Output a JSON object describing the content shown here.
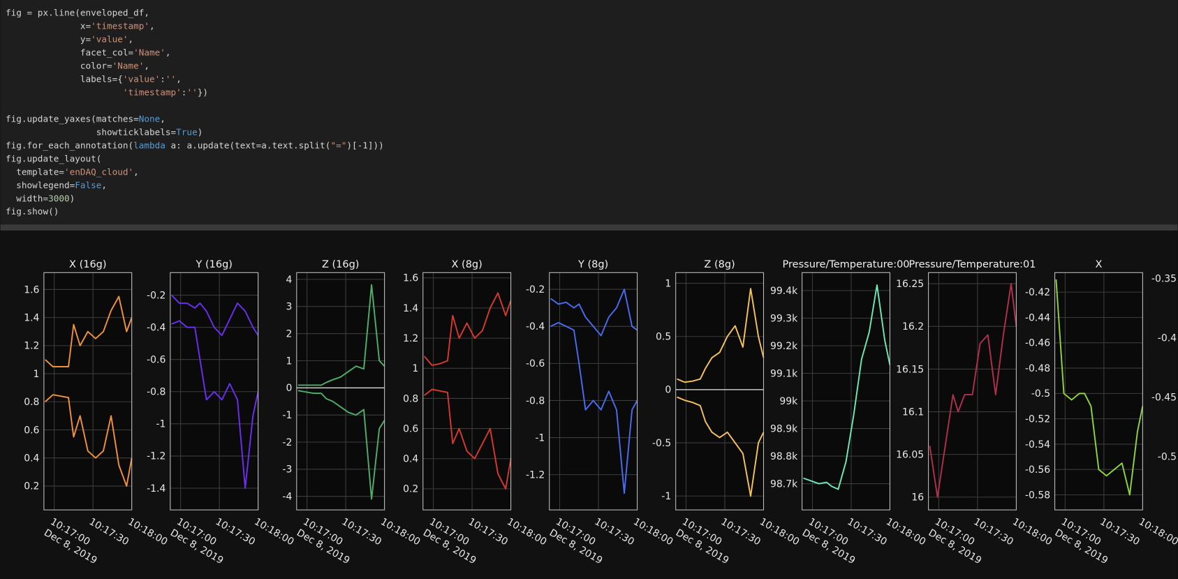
{
  "code": {
    "lines": [
      {
        "segments": [
          {
            "text": "fig = px.line(enveloped_df,",
            "color": "#d4d4d4"
          }
        ]
      },
      {
        "segments": [
          {
            "text": "              x=",
            "color": "#d4d4d4"
          },
          {
            "text": "'timestamp'",
            "color": "#ce9178"
          },
          {
            "text": ",",
            "color": "#d4d4d4"
          }
        ]
      },
      {
        "segments": [
          {
            "text": "              y=",
            "color": "#d4d4d4"
          },
          {
            "text": "'value'",
            "color": "#ce9178"
          },
          {
            "text": ",",
            "color": "#d4d4d4"
          }
        ]
      },
      {
        "segments": [
          {
            "text": "              facet_col=",
            "color": "#d4d4d4"
          },
          {
            "text": "'Name'",
            "color": "#ce9178"
          },
          {
            "text": ",",
            "color": "#d4d4d4"
          }
        ]
      },
      {
        "segments": [
          {
            "text": "              color=",
            "color": "#d4d4d4"
          },
          {
            "text": "'Name'",
            "color": "#ce9178"
          },
          {
            "text": ",",
            "color": "#d4d4d4"
          }
        ]
      },
      {
        "segments": [
          {
            "text": "              labels={",
            "color": "#d4d4d4"
          },
          {
            "text": "'value'",
            "color": "#ce9178"
          },
          {
            "text": ":",
            "color": "#d4d4d4"
          },
          {
            "text": "''",
            "color": "#ce9178"
          },
          {
            "text": ",",
            "color": "#d4d4d4"
          }
        ]
      },
      {
        "segments": [
          {
            "text": "                      ",
            "color": "#d4d4d4"
          },
          {
            "text": "'timestamp'",
            "color": "#ce9178"
          },
          {
            "text": ":",
            "color": "#d4d4d4"
          },
          {
            "text": "''",
            "color": "#ce9178"
          },
          {
            "text": "})",
            "color": "#d4d4d4"
          }
        ]
      },
      {
        "segments": []
      },
      {
        "segments": [
          {
            "text": "fig.update_yaxes(matches=",
            "color": "#d4d4d4"
          },
          {
            "text": "None",
            "color": "#569cd6"
          },
          {
            "text": ",",
            "color": "#d4d4d4"
          }
        ]
      },
      {
        "segments": [
          {
            "text": "                 showticklabels=",
            "color": "#d4d4d4"
          },
          {
            "text": "True",
            "color": "#569cd6"
          },
          {
            "text": ")",
            "color": "#d4d4d4"
          }
        ]
      },
      {
        "segments": [
          {
            "text": "fig.for_each_annotation(",
            "color": "#d4d4d4"
          },
          {
            "text": "lambda",
            "color": "#569cd6"
          },
          {
            "text": " a: a.update(text=a.text.split(",
            "color": "#d4d4d4"
          },
          {
            "text": "\"=\"",
            "color": "#ce9178"
          },
          {
            "text": ")[-1]))",
            "color": "#d4d4d4"
          }
        ]
      },
      {
        "segments": [
          {
            "text": "fig.update_layout(",
            "color": "#d4d4d4"
          }
        ]
      },
      {
        "segments": [
          {
            "text": "  template=",
            "color": "#d4d4d4"
          },
          {
            "text": "'enDAQ_cloud'",
            "color": "#ce9178"
          },
          {
            "text": ",",
            "color": "#d4d4d4"
          }
        ]
      },
      {
        "segments": [
          {
            "text": "  showlegend=",
            "color": "#d4d4d4"
          },
          {
            "text": "False",
            "color": "#569cd6"
          },
          {
            "text": ",",
            "color": "#d4d4d4"
          }
        ]
      },
      {
        "segments": [
          {
            "text": "  width=",
            "color": "#d4d4d4"
          },
          {
            "text": "3000",
            "color": "#b5cea8"
          },
          {
            "text": ")",
            "color": "#d4d4d4"
          }
        ]
      },
      {
        "segments": [
          {
            "text": "fig.show()",
            "color": "#d4d4d4"
          }
        ]
      }
    ]
  },
  "chart_data": [
    {
      "type": "line",
      "title": "X (16g)",
      "x_date_label": "Dec 8, 2019",
      "x": [
        "10:16:53",
        "10:16:59",
        "10:17:05",
        "10:17:11",
        "10:17:15",
        "10:17:20",
        "10:17:26",
        "10:17:32",
        "10:17:38",
        "10:17:44",
        "10:17:50",
        "10:17:56",
        "10:18:00"
      ],
      "xlim": [
        "10:16:52",
        "10:18:00"
      ],
      "xticks": [
        "10:17:00",
        "10:17:30",
        "10:18:00"
      ],
      "ylim": [
        0.03,
        1.72
      ],
      "yticks": [
        0.2,
        0.4,
        0.6,
        0.8,
        1,
        1.2,
        1.4,
        1.6
      ],
      "grid": true,
      "series": [
        {
          "color": "#f0923a",
          "values": [
            1.1,
            1.05,
            1.05,
            1.05,
            1.35,
            1.2,
            1.3,
            1.25,
            1.3,
            1.45,
            1.55,
            1.3,
            1.4
          ]
        },
        {
          "color": "#f0923a",
          "values": [
            0.8,
            0.85,
            0.84,
            0.83,
            0.55,
            0.7,
            0.45,
            0.4,
            0.45,
            0.7,
            0.35,
            0.2,
            0.4
          ]
        }
      ]
    },
    {
      "type": "line",
      "title": "Y (16g)",
      "x_date_label": "Dec 8, 2019",
      "x": [
        "10:16:53",
        "10:16:59",
        "10:17:05",
        "10:17:11",
        "10:17:15",
        "10:17:20",
        "10:17:26",
        "10:17:32",
        "10:17:38",
        "10:17:44",
        "10:17:50",
        "10:17:56",
        "10:18:00"
      ],
      "xlim": [
        "10:16:52",
        "10:18:00"
      ],
      "xticks": [
        "10:17:00",
        "10:17:30",
        "10:18:00"
      ],
      "ylim": [
        -1.535,
        -0.06
      ],
      "yticks": [
        -1.4,
        -1.2,
        -1,
        -0.8,
        -0.6,
        -0.4,
        -0.2
      ],
      "grid": true,
      "series": [
        {
          "color": "#6a2ff0",
          "values": [
            -0.2,
            -0.25,
            -0.25,
            -0.28,
            -0.25,
            -0.3,
            -0.4,
            -0.45,
            -0.35,
            -0.25,
            -0.3,
            -0.4,
            -0.45
          ]
        },
        {
          "color": "#6a2ff0",
          "values": [
            -0.38,
            -0.36,
            -0.4,
            -0.4,
            -0.6,
            -0.85,
            -0.8,
            -0.85,
            -0.75,
            -0.85,
            -1.4,
            -0.95,
            -0.8
          ]
        }
      ]
    },
    {
      "type": "line",
      "title": "Z (16g)",
      "x_date_label": "Dec 8, 2019",
      "zeroline": true,
      "x": [
        "10:16:53",
        "10:16:59",
        "10:17:05",
        "10:17:11",
        "10:17:15",
        "10:17:20",
        "10:17:26",
        "10:17:32",
        "10:17:38",
        "10:17:44",
        "10:17:50",
        "10:17:56",
        "10:18:00"
      ],
      "xlim": [
        "10:16:52",
        "10:18:00"
      ],
      "xticks": [
        "10:17:00",
        "10:17:30",
        "10:18:00"
      ],
      "ylim": [
        -4.5,
        4.25
      ],
      "yticks": [
        -4,
        -3,
        -2,
        -1,
        0,
        1,
        2,
        3,
        4
      ],
      "grid": true,
      "series": [
        {
          "color": "#4fae6a",
          "values": [
            0.1,
            0.1,
            0.1,
            0.1,
            0.2,
            0.3,
            0.4,
            0.6,
            0.8,
            0.7,
            3.8,
            1.0,
            0.8
          ]
        },
        {
          "color": "#4fae6a",
          "values": [
            -0.1,
            -0.15,
            -0.2,
            -0.2,
            -0.4,
            -0.5,
            -0.7,
            -0.9,
            -1.0,
            -0.8,
            -4.1,
            -1.5,
            -1.2
          ]
        }
      ]
    },
    {
      "type": "line",
      "title": "X (8g)",
      "x_date_label": "Dec 8, 2019",
      "x": [
        "10:16:53",
        "10:16:59",
        "10:17:05",
        "10:17:11",
        "10:17:15",
        "10:17:20",
        "10:17:26",
        "10:17:32",
        "10:17:38",
        "10:17:44",
        "10:17:50",
        "10:17:56",
        "10:18:00"
      ],
      "xlim": [
        "10:16:52",
        "10:18:00"
      ],
      "xticks": [
        "10:17:00",
        "10:17:30",
        "10:18:00"
      ],
      "ylim": [
        0.06,
        1.635
      ],
      "yticks": [
        0.2,
        0.4,
        0.6,
        0.8,
        1,
        1.2,
        1.4,
        1.6
      ],
      "grid": true,
      "series": [
        {
          "color": "#d63a2e",
          "values": [
            1.08,
            1.02,
            1.03,
            1.05,
            1.35,
            1.2,
            1.3,
            1.2,
            1.25,
            1.4,
            1.5,
            1.35,
            1.45
          ]
        },
        {
          "color": "#d63a2e",
          "values": [
            0.82,
            0.86,
            0.85,
            0.84,
            0.5,
            0.6,
            0.45,
            0.4,
            0.5,
            0.6,
            0.3,
            0.2,
            0.4
          ]
        }
      ]
    },
    {
      "type": "line",
      "title": "Y (8g)",
      "x_date_label": "Dec 8, 2019",
      "x": [
        "10:16:53",
        "10:16:59",
        "10:17:05",
        "10:17:11",
        "10:17:15",
        "10:17:20",
        "10:17:26",
        "10:17:32",
        "10:17:38",
        "10:17:44",
        "10:17:50",
        "10:17:56",
        "10:18:00"
      ],
      "xlim": [
        "10:16:52",
        "10:18:00"
      ],
      "xticks": [
        "10:17:00",
        "10:17:30",
        "10:18:00"
      ],
      "ylim": [
        -1.39,
        -0.11
      ],
      "yticks": [
        -1.2,
        -1,
        -0.8,
        -0.6,
        -0.4,
        -0.2
      ],
      "grid": true,
      "series": [
        {
          "color": "#4a6cf0",
          "values": [
            -0.25,
            -0.28,
            -0.27,
            -0.3,
            -0.28,
            -0.35,
            -0.4,
            -0.45,
            -0.35,
            -0.3,
            -0.2,
            -0.4,
            -0.42
          ]
        },
        {
          "color": "#4a6cf0",
          "values": [
            -0.4,
            -0.38,
            -0.4,
            -0.42,
            -0.6,
            -0.85,
            -0.8,
            -0.85,
            -0.75,
            -0.85,
            -1.3,
            -0.85,
            -0.8
          ]
        }
      ]
    },
    {
      "type": "line",
      "title": "Z (8g)",
      "x_date_label": "Dec 8, 2019",
      "zeroline": true,
      "x": [
        "10:16:53",
        "10:16:59",
        "10:17:05",
        "10:17:11",
        "10:17:15",
        "10:17:20",
        "10:17:26",
        "10:17:32",
        "10:17:38",
        "10:17:44",
        "10:17:50",
        "10:17:56",
        "10:18:00"
      ],
      "xlim": [
        "10:16:52",
        "10:18:00"
      ],
      "xticks": [
        "10:17:00",
        "10:17:30",
        "10:18:00"
      ],
      "ylim": [
        -1.13,
        1.1
      ],
      "yticks": [
        -1,
        -0.5,
        0,
        0.5,
        1
      ],
      "grid": true,
      "series": [
        {
          "color": "#f5c35a",
          "values": [
            0.1,
            0.07,
            0.08,
            0.1,
            0.2,
            0.3,
            0.35,
            0.5,
            0.6,
            0.4,
            0.95,
            0.5,
            0.3
          ]
        },
        {
          "color": "#f5c35a",
          "values": [
            -0.07,
            -0.1,
            -0.12,
            -0.15,
            -0.3,
            -0.4,
            -0.45,
            -0.4,
            -0.5,
            -0.6,
            -1.0,
            -0.5,
            -0.4
          ]
        }
      ]
    },
    {
      "type": "line",
      "title": "Pressure/Temperature:00",
      "x_date_label": "Dec 8, 2019",
      "x": [
        "10:16:53",
        "10:16:59",
        "10:17:05",
        "10:17:11",
        "10:17:15",
        "10:17:20",
        "10:17:26",
        "10:17:32",
        "10:17:38",
        "10:17:44",
        "10:17:50",
        "10:17:56",
        "10:18:00"
      ],
      "xlim": [
        "10:16:52",
        "10:18:00"
      ],
      "xticks": [
        "10:17:00",
        "10:17:30",
        "10:18:00"
      ],
      "ylim": [
        98605,
        99465
      ],
      "yticks": [
        {
          "value": 98700,
          "label": "98.7k"
        },
        {
          "value": 98800,
          "label": "98.8k"
        },
        {
          "value": 98900,
          "label": "98.9k"
        },
        {
          "value": 99000,
          "label": "99k"
        },
        {
          "value": 99100,
          "label": "99.1k"
        },
        {
          "value": 99200,
          "label": "99.2k"
        },
        {
          "value": 99300,
          "label": "99.3k"
        },
        {
          "value": 99400,
          "label": "99.4k"
        }
      ],
      "grid": true,
      "series": [
        {
          "color": "#6ee8b5",
          "values": [
            98720,
            98710,
            98700,
            98705,
            98690,
            98680,
            98780,
            98950,
            99150,
            99250,
            99420,
            99220,
            99130
          ]
        }
      ]
    },
    {
      "type": "line",
      "title": "Pressure/Temperature:01",
      "x_date_label": "Dec 8, 2019",
      "x": [
        "10:16:53",
        "10:16:59",
        "10:17:05",
        "10:17:11",
        "10:17:15",
        "10:17:20",
        "10:17:26",
        "10:17:32",
        "10:17:38",
        "10:17:44",
        "10:17:50",
        "10:17:56",
        "10:18:00"
      ],
      "xlim": [
        "10:16:52",
        "10:18:00"
      ],
      "xticks": [
        "10:17:00",
        "10:17:30",
        "10:18:00"
      ],
      "ylim": [
        15.985,
        16.263
      ],
      "yticks": [
        16,
        16.05,
        16.1,
        16.15,
        16.2,
        16.25
      ],
      "grid": true,
      "series": [
        {
          "color": "#b0304d",
          "values": [
            16.06,
            16,
            16.06,
            16.12,
            16.1,
            16.12,
            16.12,
            16.18,
            16.19,
            16.12,
            16.19,
            16.25,
            16.2
          ]
        }
      ]
    },
    {
      "type": "line",
      "title": "X",
      "x_date_label": "Dec 8, 2019",
      "x": [
        "10:16:53",
        "10:16:59",
        "10:17:05",
        "10:17:11",
        "10:17:15",
        "10:17:20",
        "10:17:26",
        "10:17:32",
        "10:17:38",
        "10:17:44",
        "10:17:50",
        "10:17:56",
        "10:18:00"
      ],
      "xlim": [
        "10:16:52",
        "10:18:00"
      ],
      "xticks": [
        "10:17:00",
        "10:17:30",
        "10:18:00"
      ],
      "ylim": [
        -0.5919,
        -0.4046
      ],
      "yticks": [
        -0.58,
        -0.56,
        -0.54,
        -0.52,
        -0.5,
        -0.48,
        -0.46,
        -0.44,
        -0.42
      ],
      "grid": true,
      "series": [
        {
          "color": "#8fd43a",
          "values": [
            -0.41,
            -0.5,
            -0.505,
            -0.5,
            -0.5,
            -0.51,
            -0.56,
            -0.565,
            -0.56,
            -0.555,
            -0.58,
            -0.53,
            -0.51
          ]
        }
      ]
    },
    {
      "type": "line",
      "ylim": [
        -0.545,
        -0.345
      ],
      "yticks": [
        -0.5,
        -0.45,
        -0.4,
        -0.35
      ]
    }
  ]
}
